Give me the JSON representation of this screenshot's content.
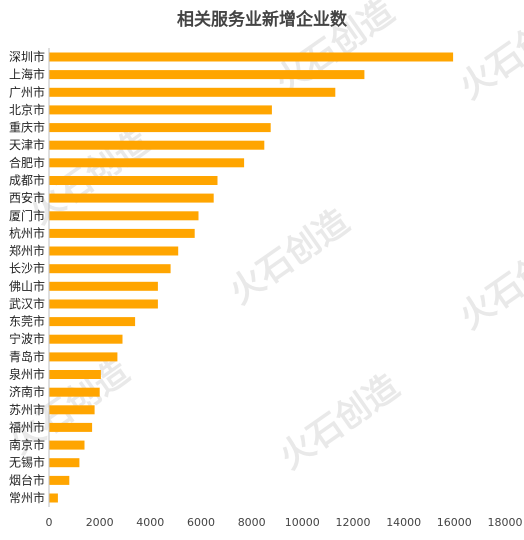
{
  "chart_data": {
    "type": "bar",
    "orientation": "horizontal",
    "title": "相关服务业新增企业数",
    "categories": [
      "深圳市",
      "上海市",
      "广州市",
      "北京市",
      "重庆市",
      "天津市",
      "合肥市",
      "成都市",
      "西安市",
      "厦门市",
      "杭州市",
      "郑州市",
      "长沙市",
      "佛山市",
      "武汉市",
      "东莞市",
      "宁波市",
      "青岛市",
      "泉州市",
      "济南市",
      "苏州市",
      "福州市",
      "南京市",
      "无锡市",
      "烟台市",
      "常州市"
    ],
    "values": [
      15950,
      12450,
      11300,
      8800,
      8750,
      8500,
      7700,
      6650,
      6500,
      5900,
      5750,
      5100,
      4800,
      4300,
      4300,
      3400,
      2900,
      2700,
      2050,
      2000,
      1800,
      1700,
      1400,
      1200,
      800,
      350
    ],
    "xlim": [
      0,
      18000
    ],
    "xticks": [
      0,
      2000,
      4000,
      6000,
      8000,
      10000,
      12000,
      14000,
      16000,
      18000
    ],
    "xlabel": "",
    "ylabel": "",
    "grid": false,
    "legend": "none",
    "bar_color": "#FFA500",
    "axis_color": "#BFBFBF"
  },
  "watermark": {
    "text": "火石创造",
    "color": "#E9E9E9"
  }
}
